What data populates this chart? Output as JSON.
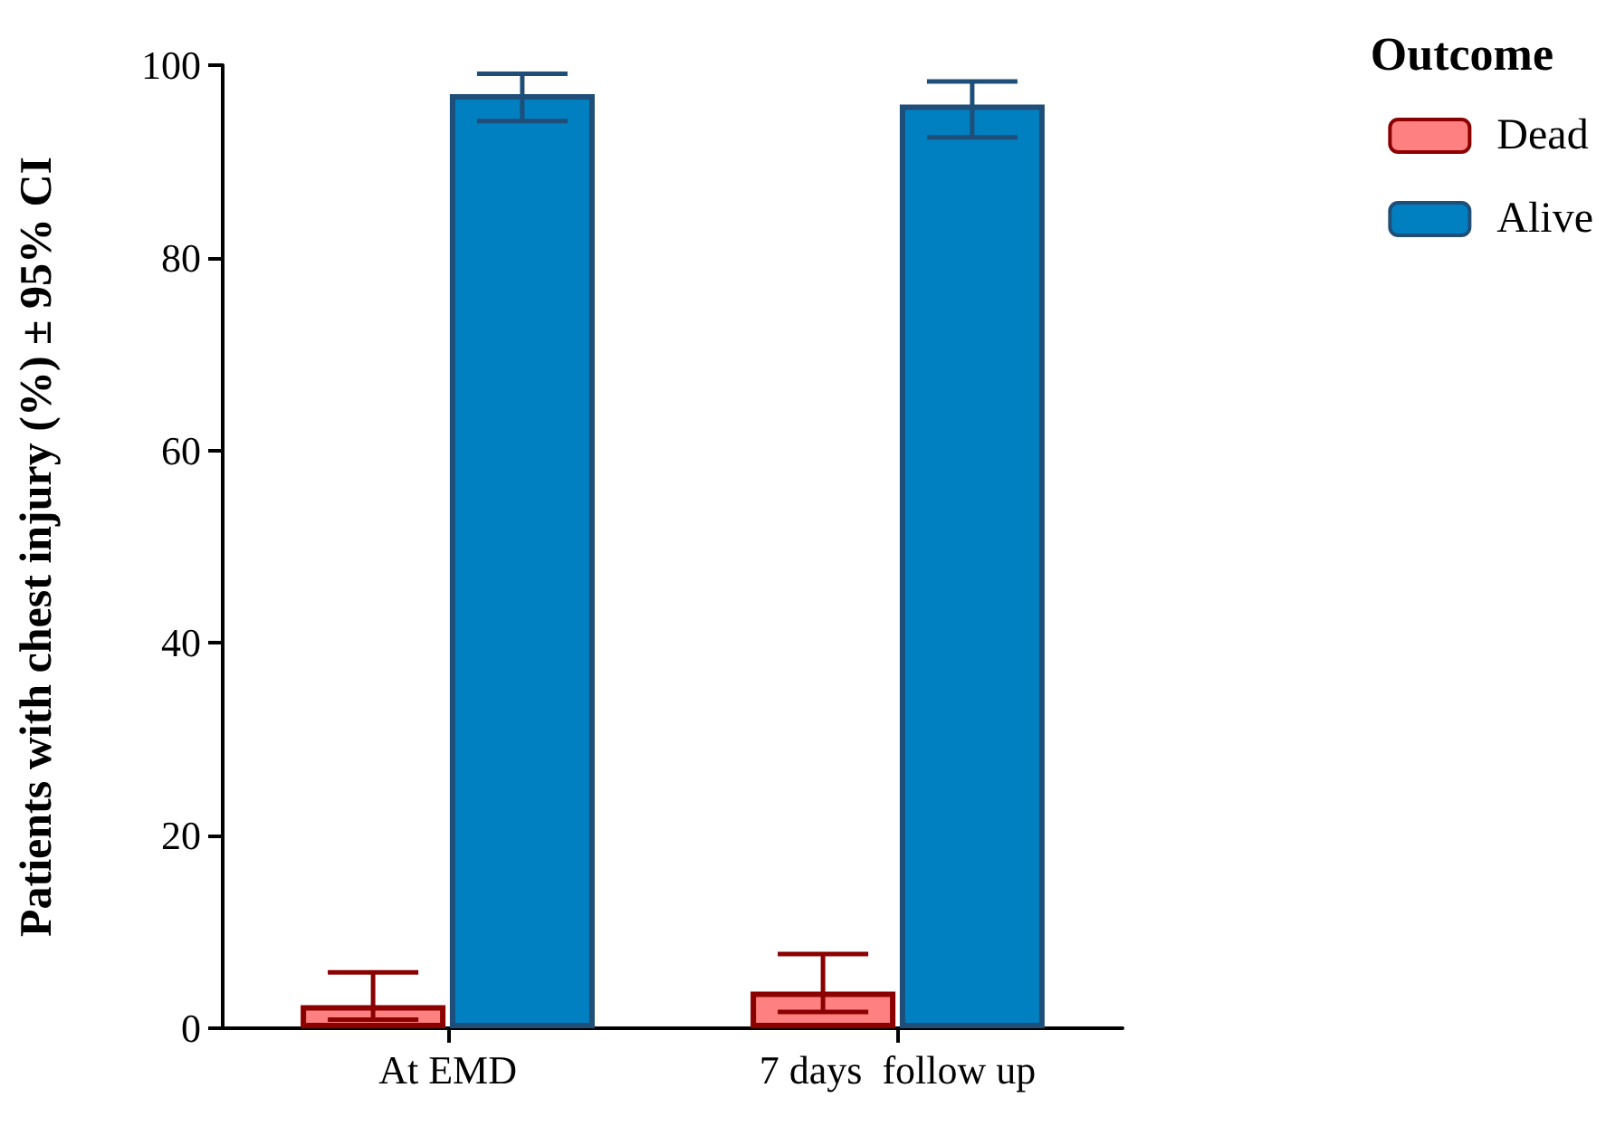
{
  "chart_data": {
    "type": "bar",
    "ylabel": "Patients with chest injury (%) ± 95% CI",
    "legend_title": "Outcome",
    "categories": [
      "At EMD",
      "7 days  follow up"
    ],
    "series": [
      {
        "name": "Dead",
        "color": "#ff8080",
        "values": [
          2.4,
          3.8
        ],
        "errors": [
          [
            0.9,
            5.8
          ],
          [
            1.7,
            7.7
          ]
        ]
      },
      {
        "name": "Alive",
        "color": "#0080c0",
        "values": [
          97.0,
          95.9
        ],
        "errors": [
          [
            94.2,
            99.1
          ],
          [
            92.5,
            98.3
          ]
        ]
      }
    ],
    "ylim": [
      0,
      100
    ],
    "yticks": [
      0,
      20,
      40,
      60,
      80,
      100
    ],
    "grid": false,
    "legend": "top right"
  }
}
